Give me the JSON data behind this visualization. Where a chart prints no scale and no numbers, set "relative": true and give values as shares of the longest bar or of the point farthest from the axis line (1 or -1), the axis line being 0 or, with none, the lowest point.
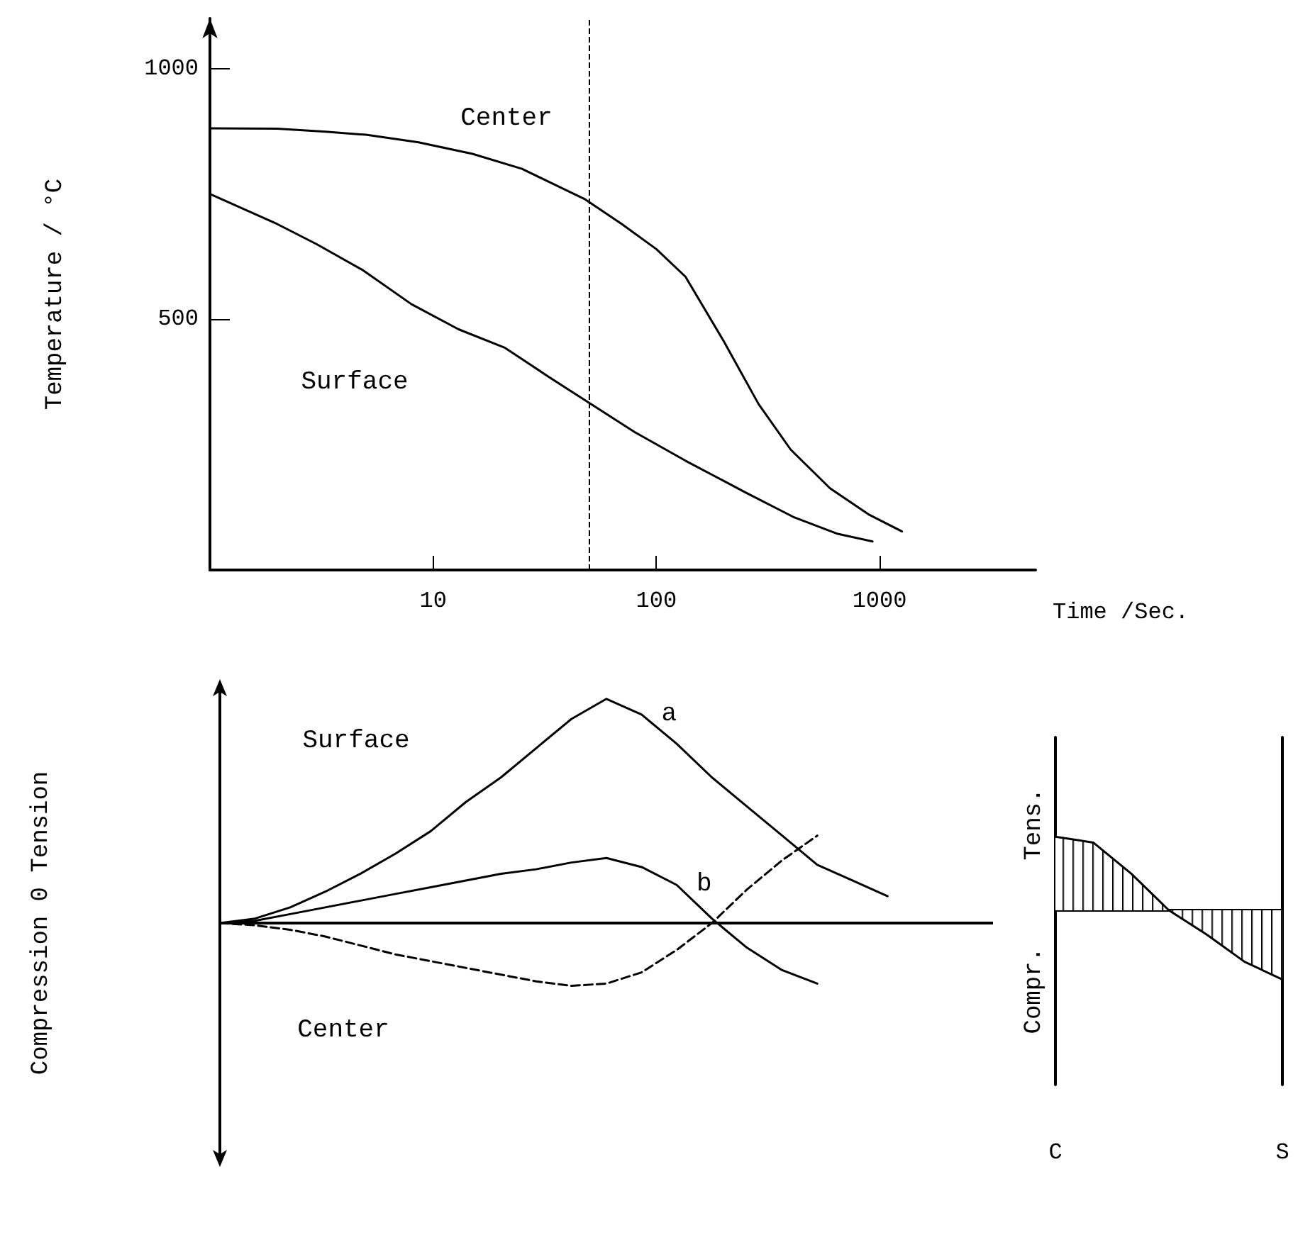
{
  "chart_data": [
    {
      "type": "line",
      "ylabel": "Temperature / °C",
      "xlabel": "Time /Sec.",
      "log": "x",
      "xlim": [
        1,
        5000
      ],
      "ylim": [
        0,
        1100
      ],
      "xticks": [
        10,
        100,
        1000
      ],
      "yticks": [
        500,
        1000
      ],
      "marker": "none",
      "line_style": "solid",
      "annotations": [
        "Center",
        "Surface"
      ],
      "ref_lines": [
        {
          "axis": "x",
          "value": 50,
          "line_style": "dashed",
          "color": "#000000"
        }
      ],
      "series": [
        {
          "color": "#000000",
          "x": [
            1,
            2,
            3.3,
            5,
            8.6,
            15,
            25,
            47.6,
            70,
            100,
            135,
            200,
            287,
            400,
            600,
            900,
            1260
          ],
          "values": [
            881,
            880,
            874,
            868,
            853,
            830,
            800,
            740,
            690,
            640,
            585,
            457,
            331,
            240,
            163,
            110,
            77
          ]
        },
        {
          "color": "#000000",
          "x": [
            1,
            2,
            3,
            4.8,
            8,
            13,
            21,
            33,
            51,
            80,
            135,
            250,
            410,
            650,
            930
          ],
          "values": [
            750,
            690,
            650,
            599,
            530,
            480,
            443,
            385,
            331,
            275,
            218,
            155,
            106,
            72,
            57
          ]
        }
      ]
    },
    {
      "type": "line",
      "relative": true,
      "ylabel": "Compression 0 Tension",
      "categories": [
        null,
        null,
        null,
        null,
        null,
        null,
        null,
        null,
        null,
        null,
        null,
        null,
        null,
        null,
        null,
        null,
        null,
        null,
        null,
        null,
        null,
        null,
        null
      ],
      "tick_labels": false,
      "marker": "none",
      "annotations": [
        "Surface",
        "Center"
      ],
      "series": [
        {
          "name": "a",
          "color": "#000000",
          "line_style": "solid",
          "values": [
            0,
            0.02,
            0.07,
            0.14,
            0.22,
            0.31,
            0.41,
            0.54,
            0.65,
            0.78,
            0.91,
            1,
            0.93,
            0.8,
            0.65,
            0.52,
            0.39,
            0.26,
            0.19,
            0.12,
            null,
            null,
            null
          ]
        },
        {
          "name": "b",
          "color": "#000000",
          "line_style": "solid",
          "values": [
            0,
            0.01,
            0.04,
            0.07,
            0.1,
            0.13,
            0.16,
            0.19,
            0.22,
            0.24,
            0.27,
            0.29,
            0.25,
            0.17,
            0.02,
            -0.11,
            -0.21,
            -0.27,
            null,
            null,
            null,
            null,
            null
          ]
        },
        {
          "color": "#000000",
          "line_style": "dashed",
          "values": [
            0,
            -0.01,
            -0.03,
            -0.06,
            -0.1,
            -0.14,
            -0.17,
            -0.2,
            -0.23,
            -0.26,
            -0.28,
            -0.27,
            -0.22,
            -0.12,
            0,
            0.15,
            0.28,
            0.39,
            null,
            null,
            null,
            null,
            null
          ]
        }
      ]
    },
    {
      "type": "area",
      "relative": true,
      "ylabel": "Compr.      Tens.",
      "categories": [
        "C",
        null,
        null,
        null,
        null,
        null,
        "S"
      ],
      "tick_labels": "x",
      "marker": "none",
      "series": [
        {
          "color": "#000000",
          "values": [
            1,
            0.92,
            0.5,
            0,
            -0.33,
            -0.7,
            -0.94
          ]
        }
      ]
    }
  ]
}
